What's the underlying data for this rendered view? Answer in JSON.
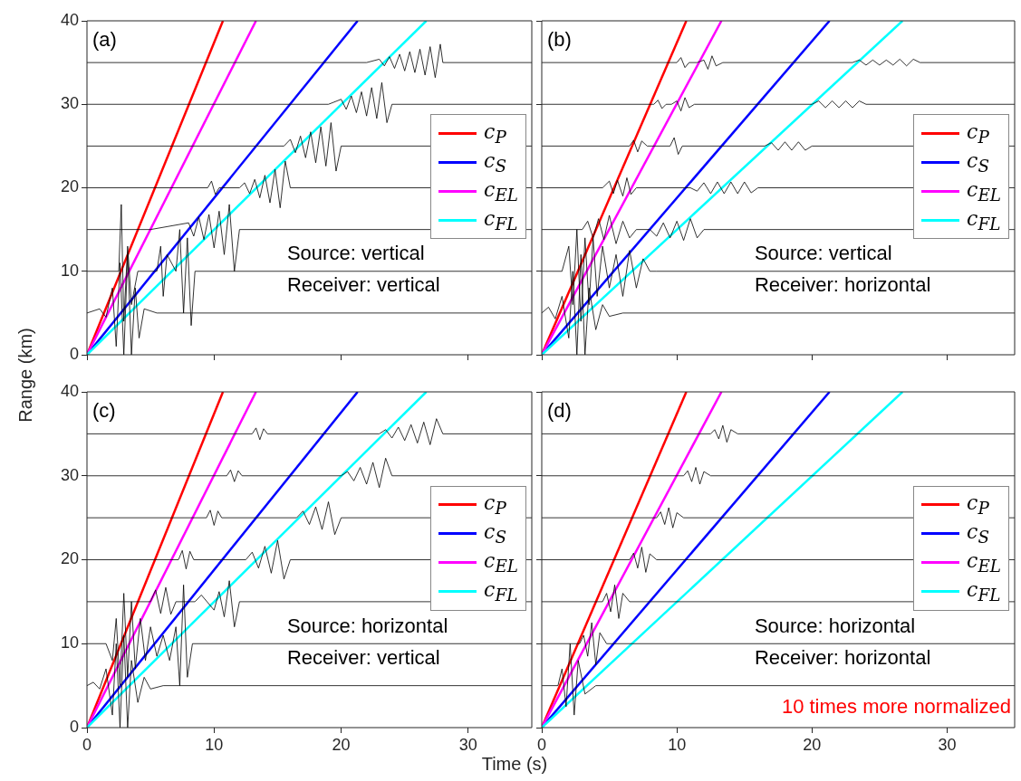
{
  "chart_data": [
    {
      "type": "line",
      "ylabel": "Range (km)",
      "xlim": [
        0,
        35
      ],
      "ylim": [
        0,
        40
      ],
      "xticks": [
        0,
        10,
        20,
        30
      ],
      "yticks": [
        0,
        10,
        20,
        30,
        40
      ],
      "tick_labels": "y",
      "legend": "right",
      "annotations": [
        "(a)",
        "Source: vertical",
        "Receiver: vertical"
      ],
      "series": [
        {
          "color": "#000000",
          "x": [
            0,
            1,
            1.5,
            2,
            2.3,
            2.6,
            2.9,
            3.2,
            3.5,
            3.8,
            4.1,
            4.5,
            5.5,
            35
          ],
          "values": [
            5,
            5.5,
            4.5,
            8,
            1,
            11,
            0,
            12,
            0,
            8,
            2,
            5.5,
            5,
            5
          ]
        },
        {
          "color": "#000000",
          "x": [
            0,
            2.5,
            2.7,
            2.9,
            3.2,
            3.5,
            4,
            5.5,
            5.8,
            6,
            6.3,
            7,
            7.3,
            7.6,
            7.9,
            8.2,
            8.5,
            35
          ],
          "values": [
            10,
            10,
            18,
            4,
            13,
            6,
            10,
            10,
            13,
            7,
            12,
            10,
            15,
            5,
            14,
            3.5,
            10,
            10
          ]
        },
        {
          "color": "#000000",
          "x": [
            0,
            5,
            8,
            8.4,
            8.8,
            9.2,
            9.6,
            10,
            10.4,
            10.8,
            11.2,
            11.6,
            12,
            35
          ],
          "values": [
            15,
            15,
            15.8,
            14.2,
            16.5,
            13.8,
            16.8,
            12.8,
            17.2,
            12,
            18,
            10,
            15,
            15
          ]
        },
        {
          "color": "#000000",
          "x": [
            0,
            9.5,
            9.8,
            10.1,
            10.4,
            12,
            12.4,
            12.8,
            13.2,
            13.6,
            14,
            14.4,
            14.8,
            15.2,
            15.6,
            16,
            35
          ],
          "values": [
            20,
            20,
            20.8,
            19.2,
            20,
            20,
            20.6,
            19.3,
            21,
            18.8,
            21.5,
            18.2,
            22.2,
            17.6,
            23.2,
            20,
            20
          ]
        },
        {
          "color": "#000000",
          "x": [
            0,
            15.5,
            16,
            16.4,
            16.8,
            17.2,
            17.6,
            18,
            18.4,
            18.8,
            19.2,
            19.6,
            20,
            35
          ],
          "values": [
            25,
            25,
            25.8,
            24.2,
            26.2,
            23.6,
            26.7,
            23,
            27.3,
            22.6,
            27.8,
            22,
            25,
            25
          ]
        },
        {
          "color": "#000000",
          "x": [
            0,
            19,
            20,
            20.4,
            20.8,
            21.2,
            21.6,
            22,
            22.4,
            22.8,
            23.2,
            23.6,
            24,
            35
          ],
          "values": [
            30,
            30,
            30.6,
            29.4,
            31,
            29,
            31.5,
            28.6,
            32,
            28.3,
            32.6,
            27.8,
            30,
            30
          ]
        },
        {
          "color": "#000000",
          "x": [
            0,
            22,
            23,
            23.4,
            23.8,
            24.2,
            24.6,
            25,
            25.4,
            25.8,
            26.2,
            26.6,
            27,
            27.4,
            27.8,
            28,
            35
          ],
          "values": [
            35,
            35,
            35.4,
            34.6,
            35.7,
            34.3,
            36,
            34,
            36.3,
            33.8,
            36.6,
            33.5,
            36.9,
            33.2,
            37.2,
            35,
            35
          ]
        },
        {
          "name": "c$_{P}$",
          "color": "#ff0000",
          "x": [
            0,
            10.7
          ],
          "values": [
            0,
            40
          ]
        },
        {
          "name": "c$_{S}$",
          "color": "#0000ff",
          "x": [
            0,
            21.3
          ],
          "values": [
            0,
            40
          ]
        },
        {
          "name": "c$_{EL}$",
          "color": "#ff00ff",
          "x": [
            0,
            13.3
          ],
          "values": [
            0,
            40
          ]
        },
        {
          "name": "c$_{FL}$",
          "color": "#00ffff",
          "x": [
            0,
            26.7
          ],
          "values": [
            0,
            40
          ]
        }
      ]
    },
    {
      "type": "line",
      "xlim": [
        0,
        35
      ],
      "ylim": [
        0,
        40
      ],
      "xticks": [
        0,
        10,
        20,
        30
      ],
      "yticks": [
        0,
        10,
        20,
        30,
        40
      ],
      "tick_labels": false,
      "legend": "right",
      "annotations": [
        "(b)",
        "Source: vertical",
        "Receiver: horizontal"
      ],
      "series": [
        {
          "color": "#000000",
          "x": [
            0,
            0.5,
            1,
            1.5,
            2,
            2.3,
            2.6,
            2.9,
            3.2,
            3.5,
            4,
            4.5,
            5,
            6,
            35
          ],
          "values": [
            5,
            5.7,
            4.3,
            7,
            2,
            10,
            0,
            12,
            0,
            8,
            3,
            6,
            4.6,
            5,
            5
          ]
        },
        {
          "color": "#000000",
          "x": [
            0,
            1.5,
            2,
            2.3,
            2.6,
            2.9,
            3.2,
            3.5,
            3.8,
            4.1,
            4.5,
            5,
            5.5,
            6,
            6.5,
            7,
            7.5,
            8,
            8.5,
            35
          ],
          "values": [
            10,
            10,
            13,
            6,
            15,
            4,
            14,
            6,
            14,
            7,
            13,
            8,
            12,
            7,
            12.5,
            8,
            11.5,
            10,
            10,
            10
          ]
        },
        {
          "color": "#000000",
          "x": [
            0,
            3,
            3.4,
            3.8,
            4.2,
            4.6,
            5,
            5.5,
            6,
            6.5,
            7,
            8,
            8.5,
            9,
            9.5,
            10,
            10.5,
            11,
            11.5,
            12,
            35
          ],
          "values": [
            15,
            15,
            16,
            14,
            16.3,
            13.8,
            16.7,
            13.3,
            16,
            14,
            15,
            15,
            14.2,
            15.8,
            14,
            16,
            13.7,
            16.3,
            14,
            15,
            15
          ]
        },
        {
          "color": "#000000",
          "x": [
            0,
            4.5,
            5,
            5.3,
            5.6,
            6,
            6.3,
            6.6,
            7,
            11,
            11.5,
            12,
            12.5,
            13,
            13.5,
            14,
            14.5,
            15,
            15.5,
            16,
            35
          ],
          "values": [
            20,
            20,
            20.8,
            19.3,
            20.9,
            19,
            21.2,
            19.2,
            20,
            20,
            19.6,
            20.6,
            19.3,
            20.7,
            19.3,
            20.7,
            19.3,
            20.7,
            19.4,
            20,
            20
          ]
        },
        {
          "color": "#000000",
          "x": [
            0,
            6.5,
            6.8,
            7.1,
            7.4,
            7.8,
            9.5,
            9.8,
            10.1,
            10.4,
            16.5,
            17,
            17.5,
            18,
            18.5,
            19,
            19.5,
            20,
            35
          ],
          "values": [
            25,
            25,
            25.7,
            24.3,
            25.6,
            25,
            25,
            26,
            24,
            25,
            25,
            25.4,
            24.5,
            25.5,
            24.5,
            25.5,
            24.5,
            25,
            25
          ]
        },
        {
          "color": "#000000",
          "x": [
            0,
            8.3,
            8.6,
            8.9,
            9.2,
            9.6,
            10,
            10.3,
            10.6,
            10.9,
            11.3,
            20,
            20.5,
            21,
            21.5,
            22,
            22.5,
            23,
            23.5,
            24,
            35
          ],
          "values": [
            30,
            30,
            30.5,
            29.5,
            30,
            30,
            30.4,
            29.2,
            30.8,
            29.6,
            30,
            30,
            30.4,
            29.6,
            30.4,
            29.6,
            30.4,
            29.6,
            30.4,
            30,
            30
          ]
        },
        {
          "color": "#000000",
          "x": [
            0,
            10,
            10.3,
            10.6,
            10.9,
            11.5,
            12,
            12.3,
            12.6,
            12.9,
            13.4,
            23,
            23.5,
            24,
            24.5,
            25,
            25.5,
            26,
            26.5,
            27,
            27.5,
            28,
            35
          ],
          "values": [
            35,
            35,
            35.6,
            34.4,
            35,
            35,
            35.3,
            34.2,
            35.8,
            34.6,
            35,
            35,
            35.3,
            34.7,
            35.3,
            34.7,
            35.3,
            34.7,
            35.4,
            34.6,
            35.4,
            35,
            35
          ]
        },
        {
          "name": "c$_{P}$",
          "color": "#ff0000",
          "x": [
            0,
            10.7
          ],
          "values": [
            0,
            40
          ]
        },
        {
          "name": "c$_{S}$",
          "color": "#0000ff",
          "x": [
            0,
            21.3
          ],
          "values": [
            0,
            40
          ]
        },
        {
          "name": "c$_{EL}$",
          "color": "#ff00ff",
          "x": [
            0,
            13.3
          ],
          "values": [
            0,
            40
          ]
        },
        {
          "name": "c$_{FL}$",
          "color": "#00ffff",
          "x": [
            0,
            26.7
          ],
          "values": [
            0,
            40
          ]
        }
      ]
    },
    {
      "type": "line",
      "xlabel": "Time (s)",
      "xlim": [
        0,
        35
      ],
      "ylim": [
        0,
        40
      ],
      "xticks": [
        0,
        10,
        20,
        30
      ],
      "yticks": [
        0,
        10,
        20,
        30,
        40
      ],
      "legend": "right",
      "annotations": [
        "(c)",
        "Source: horizontal",
        "Receiver: vertical"
      ],
      "series": [
        {
          "color": "#000000",
          "x": [
            0,
            0.5,
            1,
            1.5,
            2,
            2.3,
            2.6,
            2.9,
            3.2,
            3.5,
            4,
            4.5,
            5,
            6,
            35
          ],
          "values": [
            5,
            5.4,
            4.6,
            7,
            1.5,
            10,
            0,
            11,
            0,
            8,
            3,
            6,
            4.6,
            5,
            5
          ]
        },
        {
          "color": "#000000",
          "x": [
            0,
            1.5,
            2,
            2.3,
            2.6,
            2.9,
            3.2,
            3.5,
            3.8,
            4.2,
            4.6,
            5,
            5.5,
            6,
            6.5,
            7,
            7.3,
            7.6,
            7.9,
            8.3,
            35
          ],
          "values": [
            10,
            10,
            8,
            13,
            5,
            16,
            6,
            15,
            7,
            13,
            8,
            12,
            8.5,
            11,
            8,
            12,
            5,
            17,
            6,
            10,
            10
          ]
        },
        {
          "color": "#000000",
          "x": [
            0,
            5,
            5.4,
            5.8,
            6.2,
            6.6,
            7,
            8.5,
            9,
            10,
            10.4,
            10.8,
            11.2,
            11.6,
            12,
            35
          ],
          "values": [
            15,
            15,
            16.4,
            13.6,
            16.7,
            13.5,
            15,
            15,
            15.8,
            14,
            16.2,
            13.2,
            17.5,
            12,
            15,
            15
          ]
        },
        {
          "color": "#000000",
          "x": [
            0,
            7.2,
            7.5,
            7.8,
            8.1,
            8.4,
            12.5,
            13,
            13.5,
            14,
            14.5,
            15,
            15.5,
            16,
            35
          ],
          "values": [
            20,
            20,
            21.1,
            18.9,
            21,
            20,
            20,
            20.9,
            19,
            21.6,
            18.4,
            22.3,
            17.7,
            20,
            20
          ]
        },
        {
          "color": "#000000",
          "x": [
            0,
            9.4,
            9.7,
            10,
            10.3,
            10.6,
            16.5,
            17,
            17.5,
            18,
            18.5,
            19,
            19.5,
            20,
            35
          ],
          "values": [
            25,
            25,
            25.9,
            24.1,
            25.8,
            25,
            25,
            25.8,
            24.2,
            26.3,
            23.6,
            26.9,
            23,
            25,
            25
          ]
        },
        {
          "color": "#000000",
          "x": [
            0,
            11,
            11.3,
            11.6,
            11.9,
            12.2,
            20,
            20.5,
            21,
            21.5,
            22,
            22.5,
            23,
            23.5,
            24,
            35
          ],
          "values": [
            30,
            30,
            30.7,
            29.3,
            30.6,
            30,
            30,
            30.5,
            29.4,
            31,
            29,
            31.6,
            28.6,
            32.1,
            30,
            30
          ]
        },
        {
          "color": "#000000",
          "x": [
            0,
            13,
            13.3,
            13.6,
            13.9,
            14.2,
            23,
            23.5,
            24,
            24.5,
            25,
            25.5,
            26,
            26.5,
            27,
            27.5,
            28,
            35
          ],
          "values": [
            35,
            35,
            35.7,
            34.3,
            35.6,
            35,
            35,
            35.5,
            34.5,
            35.8,
            34.2,
            36.1,
            33.9,
            36.4,
            33.7,
            36.8,
            35,
            35
          ]
        },
        {
          "name": "c$_{P}$",
          "color": "#ff0000",
          "x": [
            0,
            10.7
          ],
          "values": [
            0,
            40
          ]
        },
        {
          "name": "c$_{S}$",
          "color": "#0000ff",
          "x": [
            0,
            21.3
          ],
          "values": [
            0,
            40
          ]
        },
        {
          "name": "c$_{EL}$",
          "color": "#ff00ff",
          "x": [
            0,
            13.3
          ],
          "values": [
            0,
            40
          ]
        },
        {
          "name": "c$_{FL}$",
          "color": "#00ffff",
          "x": [
            0,
            26.7
          ],
          "values": [
            0,
            40
          ]
        }
      ]
    },
    {
      "type": "line",
      "xlim": [
        0,
        35
      ],
      "ylim": [
        0,
        40
      ],
      "xticks": [
        0,
        10,
        20,
        30
      ],
      "yticks": [
        0,
        10,
        20,
        30,
        40
      ],
      "tick_labels": "x",
      "legend": "right",
      "annotations": [
        "(d)",
        "Source: horizontal",
        "Receiver: horizontal",
        "10 times more normalized"
      ],
      "series": [
        {
          "color": "#000000",
          "x": [
            0,
            1.2,
            1.5,
            1.8,
            2.1,
            2.4,
            2.7,
            3.2,
            4,
            35
          ],
          "values": [
            5,
            5,
            7,
            2.5,
            10,
            1.5,
            8,
            4,
            5,
            5
          ]
        },
        {
          "color": "#000000",
          "x": [
            0,
            2.8,
            3.1,
            3.4,
            3.7,
            4,
            4.3,
            4.8,
            35
          ],
          "values": [
            10,
            10,
            11,
            8.5,
            12.5,
            7.5,
            11.3,
            10,
            10
          ]
        },
        {
          "color": "#000000",
          "x": [
            0,
            4.5,
            4.8,
            5.1,
            5.4,
            5.7,
            6,
            6.5,
            35
          ],
          "values": [
            15,
            15,
            16,
            13.8,
            17,
            13,
            16,
            15,
            15
          ]
        },
        {
          "color": "#000000",
          "x": [
            0,
            6.5,
            6.8,
            7.1,
            7.4,
            7.7,
            8,
            8.5,
            35
          ],
          "values": [
            20,
            20,
            20.8,
            19,
            21.5,
            18.5,
            20.7,
            20,
            20
          ]
        },
        {
          "color": "#000000",
          "x": [
            0,
            8.5,
            8.8,
            9.1,
            9.4,
            9.7,
            10,
            10.5,
            35
          ],
          "values": [
            25,
            25,
            25.7,
            24.2,
            26.2,
            23.8,
            25.6,
            25,
            25
          ]
        },
        {
          "color": "#000000",
          "x": [
            0,
            10.5,
            10.8,
            11.1,
            11.4,
            11.7,
            12,
            12.5,
            35
          ],
          "values": [
            30,
            30,
            30.6,
            29.3,
            31,
            29,
            30.5,
            30,
            30
          ]
        },
        {
          "color": "#000000",
          "x": [
            0,
            12.5,
            12.8,
            13.1,
            13.4,
            13.7,
            14,
            14.5,
            35
          ],
          "values": [
            35,
            35,
            35.5,
            34.4,
            36,
            34,
            35.5,
            35,
            35
          ]
        },
        {
          "name": "c$_{P}$",
          "color": "#ff0000",
          "x": [
            0,
            10.7
          ],
          "values": [
            0,
            40
          ]
        },
        {
          "name": "c$_{S}$",
          "color": "#0000ff",
          "x": [
            0,
            21.3
          ],
          "values": [
            0,
            40
          ]
        },
        {
          "name": "c$_{EL}$",
          "color": "#ff00ff",
          "x": [
            0,
            13.3
          ],
          "values": [
            0,
            40
          ]
        },
        {
          "name": "c$_{FL}$",
          "color": "#00ffff",
          "x": [
            0,
            26.7
          ],
          "values": [
            0,
            40
          ]
        }
      ]
    }
  ]
}
